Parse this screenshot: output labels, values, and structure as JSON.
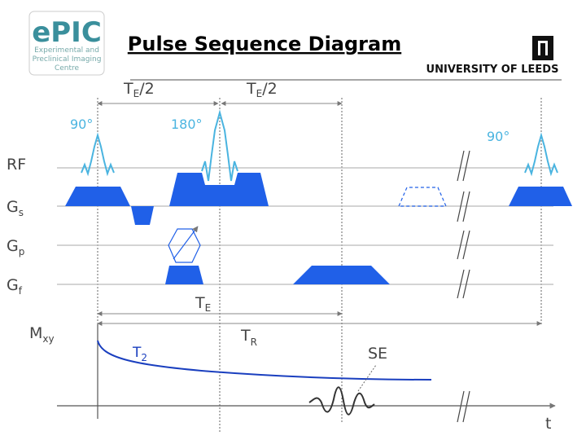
{
  "logo": {
    "name": "ePIC",
    "lines": [
      "Experimental and",
      "Preclinical Imaging",
      "Centre"
    ]
  },
  "header": {
    "title": "Pulse Sequence Diagram",
    "institution": "UNIVERSITY OF LEEDS"
  },
  "timing": {
    "te_half_1": {
      "main": "T",
      "sub": "E",
      "suffix": "/2"
    },
    "te_half_2": {
      "main": "T",
      "sub": "E",
      "suffix": "/2"
    },
    "te": {
      "main": "T",
      "sub": "E"
    },
    "tr": {
      "main": "T",
      "sub": "R"
    }
  },
  "pulses": {
    "first": "90°",
    "refocus": "180°",
    "next": "90°"
  },
  "rows": {
    "rf": "RF",
    "gs": {
      "main": "G",
      "sub": "s"
    },
    "gp": {
      "main": "G",
      "sub": "p"
    },
    "gf": {
      "main": "G",
      "sub": "f"
    },
    "mxy": {
      "main": "M",
      "sub": "xy"
    }
  },
  "signal": {
    "decay": {
      "main": "T",
      "sub": "2"
    },
    "echo": "SE",
    "time_axis": "t"
  }
}
